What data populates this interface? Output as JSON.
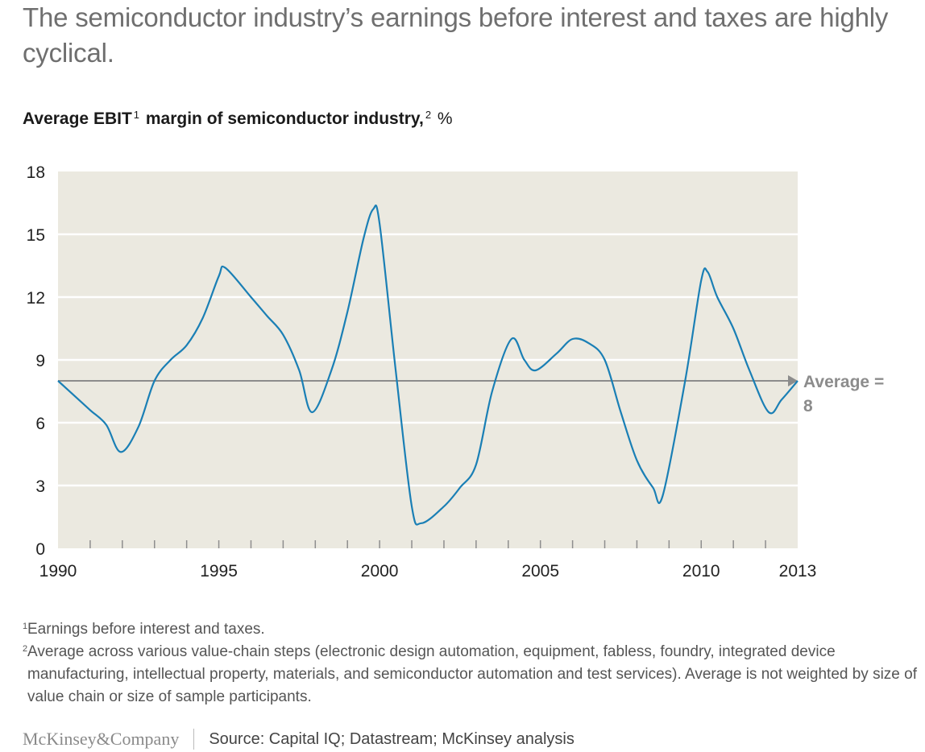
{
  "headline": "The semiconductor industry’s earnings before interest and taxes are highly cyclical.",
  "subtitle": {
    "bold_part1": "Average EBIT",
    "sup1": "1",
    "bold_part2": " margin of semiconductor industry,",
    "sup2": "2",
    "unit": " %"
  },
  "footnotes": [
    {
      "marker": "1",
      "text": "Earnings before interest and taxes."
    },
    {
      "marker": "2",
      "text": "Average across various value-chain steps (electronic design automation, equipment, fabless, foundry, integrated device manufacturing, intellectual property, materials, and semiconductor automation and test services). Average is not weighted by size of value chain or size of sample participants."
    }
  ],
  "footer": {
    "logo": "McKinsey&Company",
    "source": "Source: Capital IQ; Datastream; McKinsey analysis"
  },
  "colors": {
    "line": "#1a7fb5",
    "plot_background": "#ebe9e0",
    "gridline": "#ffffff",
    "average_line": "#8c8c8c",
    "average_label": "#8c8c8c"
  },
  "chart_data": {
    "type": "line",
    "title": "Average EBIT margin of semiconductor industry, %",
    "xlabel": "",
    "ylabel": "%",
    "xlim": [
      1990,
      2013
    ],
    "ylim": [
      0,
      18
    ],
    "y_ticks": [
      0,
      3,
      6,
      9,
      12,
      15,
      18
    ],
    "x_tick_labels": [
      {
        "x": 1990,
        "label": "1990"
      },
      {
        "x": 1995,
        "label": "1995"
      },
      {
        "x": 2000,
        "label": "2000"
      },
      {
        "x": 2005,
        "label": "2005"
      },
      {
        "x": 2010,
        "label": "2010"
      },
      {
        "x": 2013,
        "label": "2013"
      }
    ],
    "minor_ticks_every_year": true,
    "grid": true,
    "reference_line": {
      "value": 8,
      "label_line1": "Average =",
      "label_line2": "8"
    },
    "series": [
      {
        "name": "Average EBIT margin",
        "x": [
          1990,
          1990.5,
          1991,
          1991.5,
          1991.95,
          1992.5,
          1993,
          1993.5,
          1994,
          1994.5,
          1995,
          1995.2,
          1996,
          1996.5,
          1997,
          1997.5,
          1997.9,
          1998.5,
          1999,
          1999.5,
          1999.8,
          2000,
          2000.5,
          2001,
          2001.3,
          2002,
          2002.5,
          2003,
          2003.5,
          2004.1,
          2004.5,
          2004.85,
          2005.5,
          2006,
          2006.5,
          2007,
          2007.5,
          2008,
          2008.5,
          2008.8,
          2009.5,
          2010,
          2010.2,
          2010.5,
          2011,
          2011.5,
          2012.1,
          2012.5,
          2013
        ],
        "values": [
          8.0,
          7.3,
          6.6,
          5.9,
          4.6,
          5.8,
          8.0,
          9.0,
          9.7,
          11.0,
          13.0,
          13.4,
          12.0,
          11.1,
          10.2,
          8.5,
          6.5,
          8.5,
          11.3,
          14.8,
          16.2,
          15.5,
          8.5,
          2.0,
          1.2,
          2.0,
          2.9,
          4.0,
          7.5,
          10.0,
          9.0,
          8.5,
          9.3,
          10.0,
          9.8,
          9.0,
          6.5,
          4.2,
          2.9,
          2.5,
          8.0,
          12.8,
          13.2,
          12.0,
          10.5,
          8.5,
          6.5,
          7.1,
          8.0
        ]
      }
    ]
  }
}
